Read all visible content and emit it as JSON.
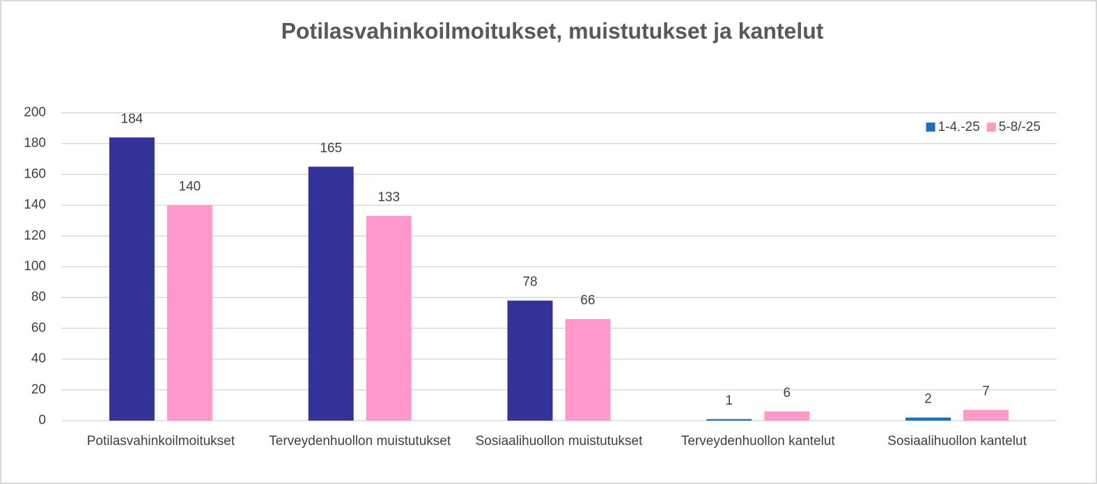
{
  "chart_data": {
    "type": "bar",
    "title": "Potilasvahinkoilmoitukset, muistutukset ja kantelut",
    "categories": [
      "Potilasvahinkoilmoitukset",
      "Terveydenhuollon muistutukset",
      "Sosiaalihuollon muistutukset",
      "Terveydenhuollon kantelut",
      "Sosiaalihuollon kantelut"
    ],
    "series": [
      {
        "name": "1-4.-25",
        "color": "#1f6fc0",
        "colors": [
          "#333399",
          "#333399",
          "#333399",
          "#1f6fc0",
          "#1f6fc0"
        ],
        "values": [
          184,
          165,
          78,
          1,
          2
        ]
      },
      {
        "name": "5-8/-25",
        "color": "#ff99cc",
        "values": [
          140,
          133,
          66,
          6,
          7
        ]
      }
    ],
    "ylim": [
      0,
      200
    ],
    "yticks": [
      0,
      20,
      40,
      60,
      80,
      100,
      120,
      140,
      160,
      180,
      200
    ],
    "grid": true,
    "legend": "top-right"
  }
}
